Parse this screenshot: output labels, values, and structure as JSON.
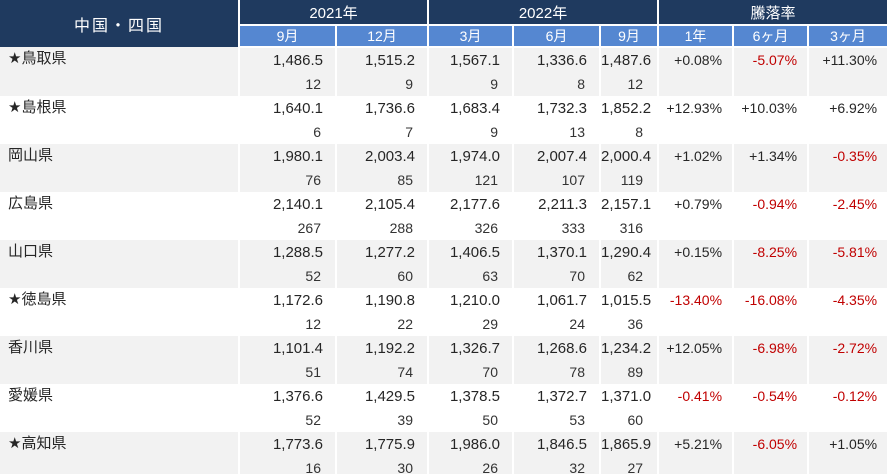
{
  "colors": {
    "header_navy": "#1F3A5F",
    "header_blue": "#5587D1",
    "negative_red": "#C00000",
    "stripe_gray": "#F2F2F2",
    "text_dark": "#262626"
  },
  "header": {
    "region": "中国・四国",
    "groups": {
      "y2021": "2021年",
      "y2022": "2022年",
      "rate": "騰落率"
    },
    "months_2021": [
      "9月",
      "12月"
    ],
    "months_2022": [
      "3月",
      "6月",
      "9月"
    ],
    "rate_periods": [
      "1年",
      "6ヶ月",
      "3ヶ月"
    ]
  },
  "chart_data": {
    "type": "table",
    "title": "中国・四国",
    "column_groups": [
      "2021年",
      "2022年",
      "騰落率"
    ],
    "columns": [
      "2021年9月",
      "2021年12月",
      "2022年3月",
      "2022年6月",
      "2022年9月",
      "騰落率 1年",
      "騰落率 6ヶ月",
      "騰落率 3ヶ月"
    ],
    "rows": [
      {
        "name": "★鳥取県",
        "values": [
          "1,486.5",
          "1,515.2",
          "1,567.1",
          "1,336.6",
          "1,487.6"
        ],
        "counts": [
          "12",
          "9",
          "9",
          "8",
          "12"
        ],
        "rates": [
          "+0.08%",
          "-5.07%",
          "+11.30%"
        ]
      },
      {
        "name": "★島根県",
        "values": [
          "1,640.1",
          "1,736.6",
          "1,683.4",
          "1,732.3",
          "1,852.2"
        ],
        "counts": [
          "6",
          "7",
          "9",
          "13",
          "8"
        ],
        "rates": [
          "+12.93%",
          "+10.03%",
          "+6.92%"
        ]
      },
      {
        "name": "岡山県",
        "values": [
          "1,980.1",
          "2,003.4",
          "1,974.0",
          "2,007.4",
          "2,000.4"
        ],
        "counts": [
          "76",
          "85",
          "121",
          "107",
          "119"
        ],
        "rates": [
          "+1.02%",
          "+1.34%",
          "-0.35%"
        ]
      },
      {
        "name": "広島県",
        "values": [
          "2,140.1",
          "2,105.4",
          "2,177.6",
          "2,211.3",
          "2,157.1"
        ],
        "counts": [
          "267",
          "288",
          "326",
          "333",
          "316"
        ],
        "rates": [
          "+0.79%",
          "-0.94%",
          "-2.45%"
        ]
      },
      {
        "name": "山口県",
        "values": [
          "1,288.5",
          "1,277.2",
          "1,406.5",
          "1,370.1",
          "1,290.4"
        ],
        "counts": [
          "52",
          "60",
          "63",
          "70",
          "62"
        ],
        "rates": [
          "+0.15%",
          "-8.25%",
          "-5.81%"
        ]
      },
      {
        "name": "★徳島県",
        "values": [
          "1,172.6",
          "1,190.8",
          "1,210.0",
          "1,061.7",
          "1,015.5"
        ],
        "counts": [
          "12",
          "22",
          "29",
          "24",
          "36"
        ],
        "rates": [
          "-13.40%",
          "-16.08%",
          "-4.35%"
        ]
      },
      {
        "name": "香川県",
        "values": [
          "1,101.4",
          "1,192.2",
          "1,326.7",
          "1,268.6",
          "1,234.2"
        ],
        "counts": [
          "51",
          "74",
          "70",
          "78",
          "89"
        ],
        "rates": [
          "+12.05%",
          "-6.98%",
          "-2.72%"
        ]
      },
      {
        "name": "愛媛県",
        "values": [
          "1,376.6",
          "1,429.5",
          "1,378.5",
          "1,372.7",
          "1,371.0"
        ],
        "counts": [
          "52",
          "39",
          "50",
          "53",
          "60"
        ],
        "rates": [
          "-0.41%",
          "-0.54%",
          "-0.12%"
        ]
      },
      {
        "name": "★高知県",
        "values": [
          "1,773.6",
          "1,775.9",
          "1,986.0",
          "1,846.5",
          "1,865.9"
        ],
        "counts": [
          "16",
          "30",
          "26",
          "32",
          "27"
        ],
        "rates": [
          "+5.21%",
          "-6.05%",
          "+1.05%"
        ]
      }
    ]
  }
}
